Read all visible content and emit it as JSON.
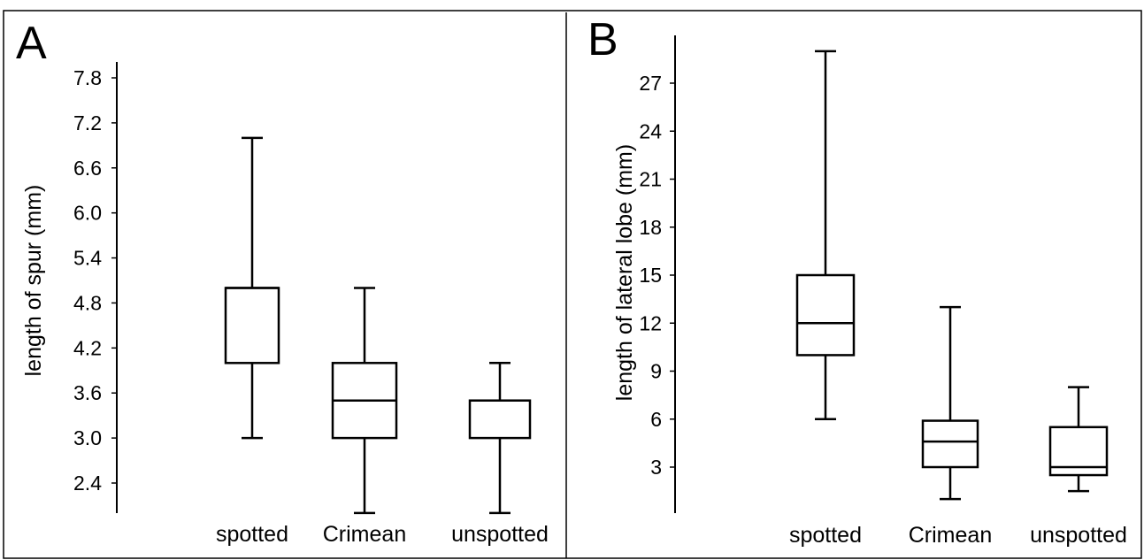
{
  "chart_data": [
    {
      "type": "boxplot",
      "panel_label": "A",
      "title": "",
      "xlabel": "",
      "ylabel": "length of spur (mm)",
      "categories": [
        "spotted",
        "Crimean",
        "unspotted"
      ],
      "yticks": [
        2.4,
        3.0,
        3.6,
        4.2,
        4.8,
        5.4,
        6.0,
        6.6,
        7.2,
        7.8
      ],
      "ytick_labels": [
        "2.4",
        "3.0",
        "3.6",
        "4.2",
        "4.8",
        "5.4",
        "6.0",
        "6.6",
        "7.2",
        "7.8"
      ],
      "ylim": [
        2.0,
        8.0
      ],
      "boxes": [
        {
          "min": 3.0,
          "q1": 4.0,
          "median": 5.0,
          "q3": 5.0,
          "max": 7.0
        },
        {
          "min": 2.0,
          "q1": 3.0,
          "median": 3.5,
          "q3": 4.0,
          "max": 5.0
        },
        {
          "min": 2.0,
          "q1": 3.0,
          "median": 3.5,
          "q3": 3.5,
          "max": 4.0
        }
      ],
      "grid": false
    },
    {
      "type": "boxplot",
      "panel_label": "B",
      "title": "",
      "xlabel": "",
      "ylabel": "length of lateral lobe (mm)",
      "categories": [
        "spotted",
        "Crimean",
        "unspotted"
      ],
      "yticks": [
        3,
        6,
        9,
        12,
        15,
        18,
        21,
        24,
        27
      ],
      "ytick_labels": [
        "3",
        "6",
        "9",
        "12",
        "15",
        "18",
        "21",
        "24",
        "27"
      ],
      "ylim": [
        0.3,
        30.0
      ],
      "boxes": [
        {
          "min": 6.0,
          "q1": 10.0,
          "median": 12.0,
          "q3": 15.0,
          "max": 29.0
        },
        {
          "min": 1.0,
          "q1": 3.0,
          "median": 4.6,
          "q3": 5.9,
          "max": 13.0
        },
        {
          "min": 1.5,
          "q1": 2.5,
          "median": 3.0,
          "q3": 5.5,
          "max": 8.0
        }
      ],
      "grid": false
    }
  ]
}
